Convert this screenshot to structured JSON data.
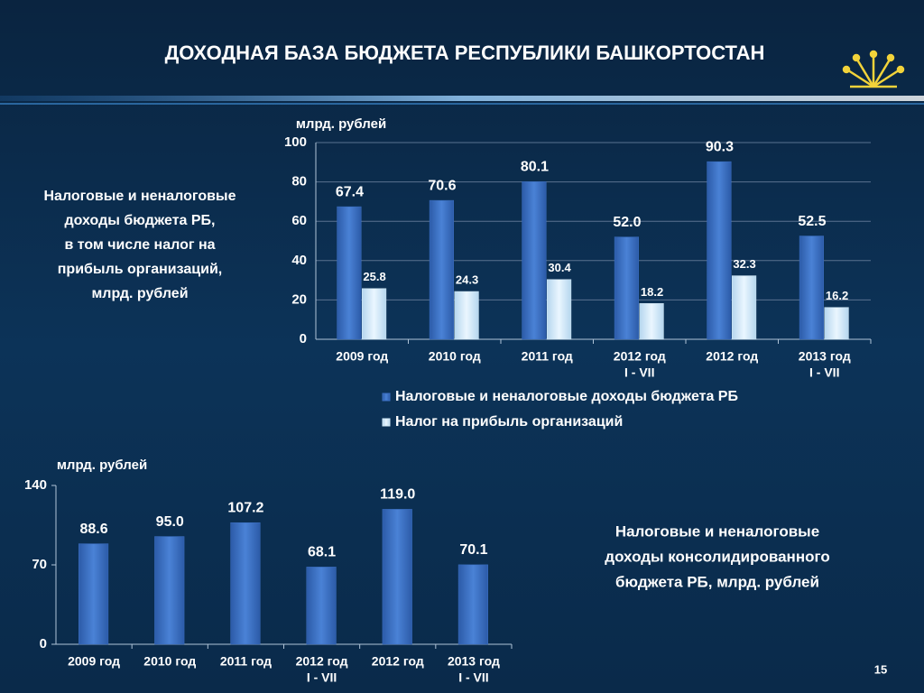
{
  "title": "ДОХОДНАЯ БАЗА БЮДЖЕТА РЕСПУБЛИКИ БАШКОРТОСТАН",
  "page_number": 15,
  "chart_data": [
    {
      "type": "bar",
      "y_axis_label": "млрд. рублей",
      "caption": [
        "Налоговые и неналоговые",
        "доходы бюджета  РБ,",
        "в том числе налог на",
        "прибыль организаций,",
        "млрд. рублей"
      ],
      "categories": [
        [
          "2009 год"
        ],
        [
          "2010 год"
        ],
        [
          "2011 год"
        ],
        [
          "2012 год",
          "I - VII"
        ],
        [
          "2012 год"
        ],
        [
          "2013 год",
          "I - VII"
        ]
      ],
      "series": [
        {
          "name": "Налоговые и неналоговые доходы бюджета РБ",
          "color": "#3b6fc2",
          "values": [
            67.4,
            70.6,
            80.1,
            52.0,
            90.3,
            52.5
          ],
          "value_labels": [
            "67.4",
            "70.6",
            "80.1",
            "52.0",
            "90.3",
            "52.5"
          ]
        },
        {
          "name": "Налог на прибыль организаций",
          "color": "#d3e9f6",
          "values": [
            25.8,
            24.3,
            30.4,
            18.2,
            32.3,
            16.2
          ]
        }
      ],
      "ylim": [
        0,
        100
      ],
      "yticks": [
        0,
        20,
        40,
        60,
        80,
        100
      ],
      "grid": true,
      "legend": "bottom"
    },
    {
      "type": "bar",
      "y_axis_label": "млрд. рублей",
      "caption": [
        "Налоговые и неналоговые",
        "доходы консолидированного",
        "бюджета  РБ, млрд. рублей"
      ],
      "categories": [
        [
          "2009 год"
        ],
        [
          "2010 год"
        ],
        [
          "2011 год"
        ],
        [
          "2012 год",
          "I - VII"
        ],
        [
          "2012 год"
        ],
        [
          "2013 год",
          "I - VII"
        ]
      ],
      "series": [
        {
          "name": "Налоговые и неналоговые доходы консолидированного бюджета РБ",
          "color": "#3b6fc2",
          "values": [
            88.6,
            95.0,
            107.2,
            68.1,
            119.0,
            70.1
          ],
          "value_labels": [
            "88.6",
            "95.0",
            "107.2",
            "68.1",
            "119.0",
            "70.1"
          ]
        }
      ],
      "ylim": [
        0,
        140
      ],
      "yticks": [
        0,
        70,
        140
      ],
      "grid": false
    }
  ]
}
